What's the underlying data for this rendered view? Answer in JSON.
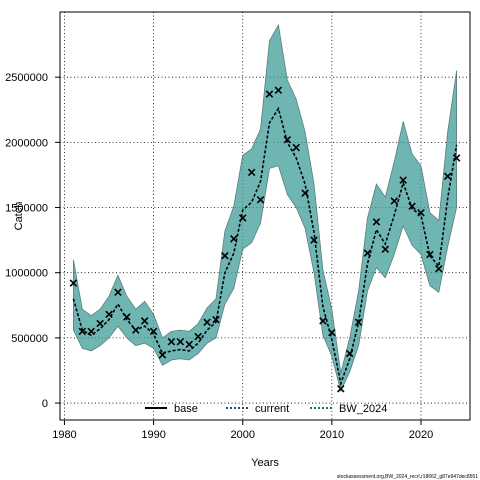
{
  "chart_data": {
    "type": "line",
    "xlabel": "Years",
    "ylabel": "Catch",
    "xlim": [
      1979.5,
      2025.5
    ],
    "ylim": [
      -130000,
      3000000
    ],
    "x_ticks": [
      1980,
      1990,
      2000,
      2010,
      2020
    ],
    "y_ticks": [
      0,
      500000,
      1000000,
      1500000,
      2000000,
      2500000
    ],
    "grid": true,
    "legend_position": "bottom",
    "legend": [
      {
        "label": "base",
        "color": "#000000",
        "style": "solid"
      },
      {
        "label": "current",
        "color": "#1f4e79",
        "style": "dotted"
      },
      {
        "label": "BW_2024",
        "color": "#008070",
        "style": "dotted"
      }
    ],
    "years": [
      1981,
      1982,
      1983,
      1984,
      1985,
      1986,
      1987,
      1988,
      1989,
      1990,
      1991,
      1992,
      1993,
      1994,
      1995,
      1996,
      1997,
      1998,
      1999,
      2000,
      2001,
      2002,
      2003,
      2004,
      2005,
      2006,
      2007,
      2008,
      2009,
      2010,
      2011,
      2012,
      2013,
      2014,
      2015,
      2016,
      2017,
      2018,
      2019,
      2020,
      2021,
      2022,
      2023,
      2024
    ],
    "observed": [
      920000,
      550000,
      550000,
      610000,
      680000,
      850000,
      660000,
      560000,
      630000,
      550000,
      370000,
      470000,
      470000,
      450000,
      510000,
      620000,
      640000,
      1130000,
      1260000,
      1420000,
      1770000,
      1560000,
      2370000,
      2400000,
      2020000,
      1960000,
      1610000,
      1250000,
      630000,
      540000,
      110000,
      380000,
      620000,
      1150000,
      1390000,
      1180000,
      1550000,
      1710000,
      1510000,
      1460000,
      1140000,
      1030000,
      1740000,
      1880000
    ],
    "fit": [
      800000,
      560000,
      520000,
      570000,
      640000,
      760000,
      640000,
      560000,
      590000,
      530000,
      380000,
      400000,
      410000,
      400000,
      460000,
      560000,
      620000,
      1000000,
      1150000,
      1480000,
      1540000,
      1700000,
      2150000,
      2260000,
      2000000,
      1880000,
      1680000,
      1310000,
      740000,
      490000,
      150000,
      340000,
      620000,
      1070000,
      1330000,
      1220000,
      1440000,
      1690000,
      1490000,
      1440000,
      1130000,
      1050000,
      1570000,
      1980000
    ],
    "ci_upper": [
      1100000,
      720000,
      670000,
      720000,
      820000,
      980000,
      820000,
      720000,
      780000,
      680000,
      500000,
      550000,
      560000,
      550000,
      610000,
      730000,
      800000,
      1320000,
      1510000,
      1900000,
      1950000,
      2100000,
      2780000,
      2900000,
      2480000,
      2330000,
      2080000,
      1680000,
      1020000,
      720000,
      230000,
      500000,
      860000,
      1420000,
      1680000,
      1580000,
      1850000,
      2160000,
      1910000,
      1820000,
      1460000,
      1400000,
      2080000,
      2550000
    ],
    "ci_lower": [
      560000,
      420000,
      400000,
      440000,
      500000,
      590000,
      500000,
      440000,
      460000,
      420000,
      290000,
      330000,
      340000,
      330000,
      380000,
      460000,
      500000,
      760000,
      880000,
      1180000,
      1230000,
      1380000,
      1800000,
      1820000,
      1600000,
      1500000,
      1340000,
      1000000,
      520000,
      360000,
      90000,
      240000,
      440000,
      860000,
      1040000,
      960000,
      1140000,
      1360000,
      1210000,
      1140000,
      900000,
      850000,
      1200000,
      1500000
    ]
  },
  "watermark": "stockassessment.org,BW_2024_recrl,r18662_g87e947dec8551"
}
